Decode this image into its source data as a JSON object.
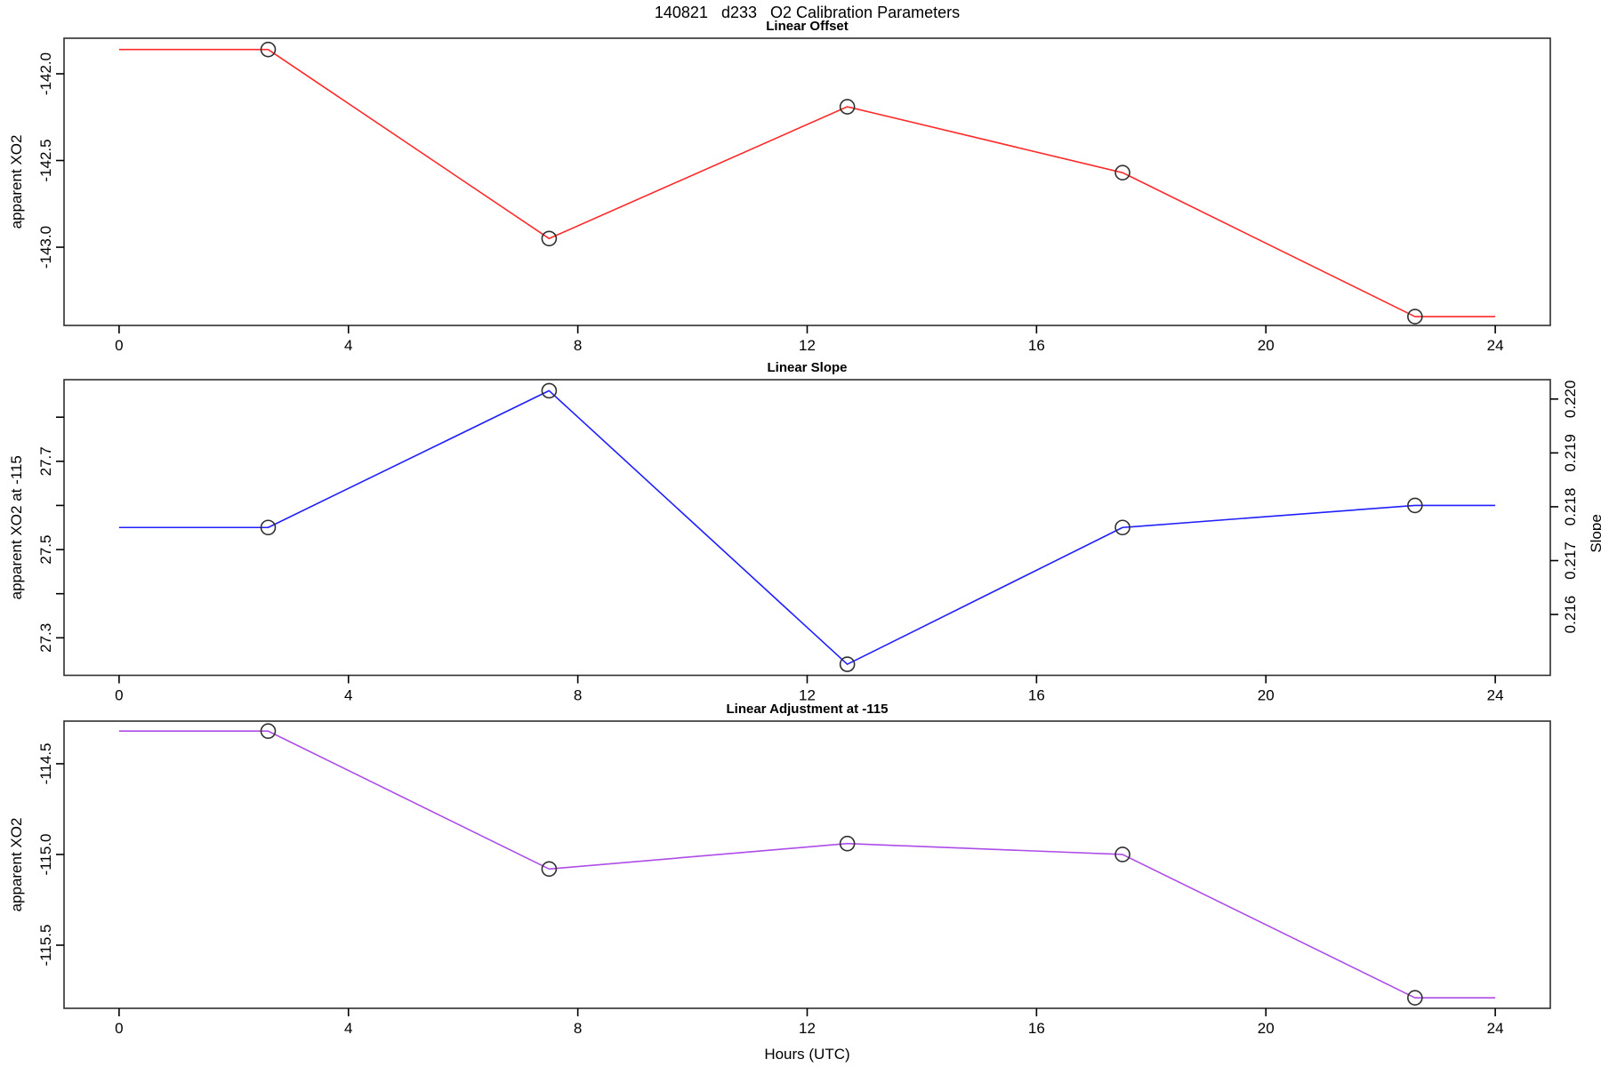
{
  "title": "140821   d233   O2 Calibration Parameters",
  "xlabel": "Hours (UTC)",
  "xticks": [
    0,
    4,
    8,
    12,
    16,
    20,
    24
  ],
  "x_tick_labels": [
    "0",
    "4",
    "8",
    "12",
    "16",
    "20",
    "24"
  ],
  "xlim": [
    -0.96,
    24.96
  ],
  "colors": {
    "offset_line": "#ff2a2a",
    "slope_line": "#1f1fff",
    "adjustment_line": "#ae4ce8",
    "marker_stroke": "#303030",
    "frame": "#2e2e2e"
  },
  "chart_data": [
    {
      "type": "line",
      "title": "Linear Offset",
      "ylabel": "apparent XO2",
      "color": "#ff2a2a",
      "marker": "open-circle",
      "x": [
        2.6,
        7.5,
        12.7,
        17.5,
        22.6
      ],
      "values": [
        -141.86,
        -142.95,
        -142.19,
        -142.57,
        -143.4
      ],
      "flat_head_from_x": 0,
      "flat_tail_to_x": 24,
      "ylim": [
        -143.451,
        -141.795
      ],
      "yticks": [
        {
          "v": -142.0,
          "label": "-142.0"
        },
        {
          "v": -142.5,
          "label": "-142.5"
        },
        {
          "v": -143.0,
          "label": "-143.0"
        }
      ]
    },
    {
      "type": "line",
      "title": "Linear Slope",
      "ylabel": "apparent XO2 at -115",
      "color": "#1f1fff",
      "marker": "open-circle",
      "x": [
        2.6,
        7.5,
        12.7,
        17.5,
        22.6
      ],
      "values": [
        27.55,
        27.86,
        27.24,
        27.55,
        27.6
      ],
      "slope_values": [
        0.2176,
        0.2202,
        0.2151,
        0.2177,
        0.218
      ],
      "flat_head_from_x": 0,
      "flat_tail_to_x": 24,
      "ylim": [
        27.215,
        27.885
      ],
      "yticks": [
        {
          "v": 27.8,
          "label": ""
        },
        {
          "v": 27.7,
          "label": "27.7"
        },
        {
          "v": 27.6,
          "label": ""
        },
        {
          "v": 27.5,
          "label": "27.5"
        },
        {
          "v": 27.4,
          "label": ""
        },
        {
          "v": 27.3,
          "label": "27.3"
        }
      ],
      "right_axis": {
        "label": "Slope",
        "ylim": [
          0.21487,
          0.22036
        ],
        "ticks": [
          {
            "v": 0.22,
            "label": "0.220"
          },
          {
            "v": 0.219,
            "label": "0.219"
          },
          {
            "v": 0.218,
            "label": "0.218"
          },
          {
            "v": 0.217,
            "label": "0.217"
          },
          {
            "v": 0.216,
            "label": "0.216"
          }
        ]
      }
    },
    {
      "type": "line",
      "title": "Linear Adjustment at -115",
      "ylabel": "apparent XO2",
      "color": "#ae4ce8",
      "marker": "open-circle",
      "x": [
        2.6,
        7.5,
        12.7,
        17.5,
        22.6
      ],
      "values": [
        -114.32,
        -115.08,
        -114.94,
        -115.0,
        -115.79
      ],
      "flat_head_from_x": 0,
      "flat_tail_to_x": 24,
      "ylim": [
        -115.848,
        -114.265
      ],
      "yticks": [
        {
          "v": -114.5,
          "label": "-114.5"
        },
        {
          "v": -115.0,
          "label": "-115.0"
        },
        {
          "v": -115.5,
          "label": "-115.5"
        }
      ]
    }
  ]
}
